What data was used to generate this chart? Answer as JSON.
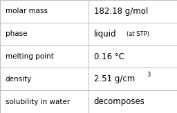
{
  "rows": [
    {
      "label": "molar mass",
      "value": "182.18 g/mol",
      "value_extra": null,
      "superscript": false
    },
    {
      "label": "phase",
      "value": "liquid",
      "value_extra": "(at STP)",
      "superscript": false
    },
    {
      "label": "melting point",
      "value": "0.16 °C",
      "value_extra": null,
      "superscript": false
    },
    {
      "label": "density",
      "value": "2.51 g/cm",
      "value_extra": "3",
      "superscript": true
    },
    {
      "label": "solubility in water",
      "value": "decomposes",
      "value_extra": null,
      "superscript": false
    }
  ],
  "col_split": 0.5,
  "bg_color": "#ffffff",
  "border_color": "#bbbbbb",
  "text_color": "#000000",
  "label_fontsize": 7.5,
  "value_fontsize": 8.5,
  "extra_fontsize": 6.0,
  "sup_fontsize": 6.0,
  "font_family": "DejaVu Sans"
}
